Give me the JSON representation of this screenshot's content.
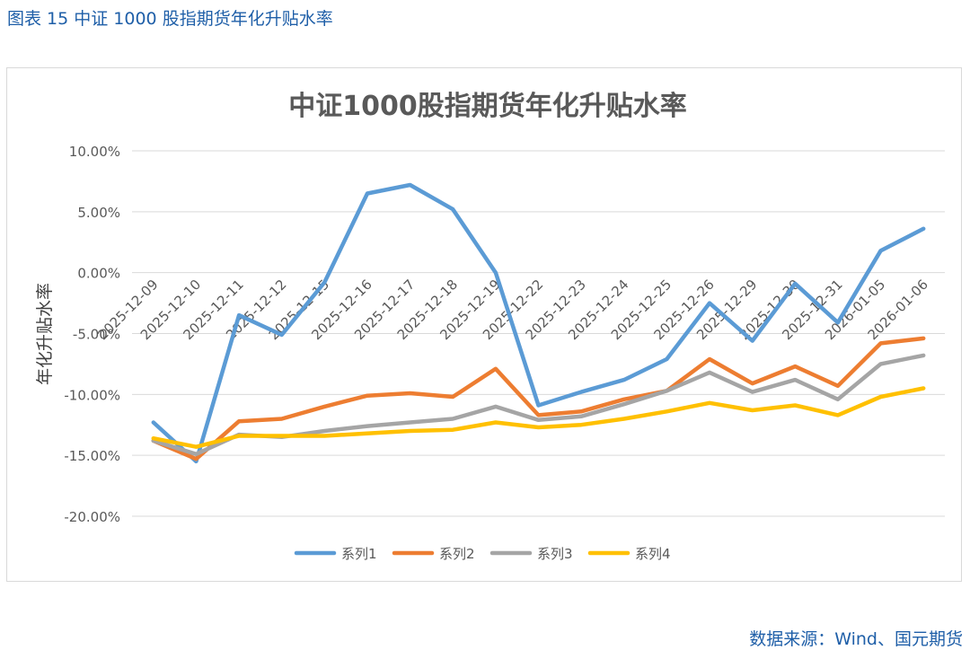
{
  "figure_caption": "图表 15  中证 1000 股指期货年化升贴水率",
  "source_note": "数据来源：Wind、国元期货",
  "colors": {
    "caption": "#1f5fa8",
    "series": [
      "#5b9bd5",
      "#ed7d31",
      "#a5a5a5",
      "#ffc000"
    ],
    "grid": "#d9d9d9",
    "axis_text": "#595959"
  },
  "chart_data": {
    "type": "line",
    "title": "中证1000股指期货年化升贴水率",
    "ylabel": "年化升贴水率",
    "xlabel": "",
    "ylim": [
      -0.2,
      0.1
    ],
    "ytick_values": [
      0.1,
      0.05,
      0.0,
      -0.05,
      -0.1,
      -0.15,
      -0.2
    ],
    "ytick_labels": [
      "10.00%",
      "5.00%",
      "0.00%",
      "-5.00%",
      "-10.00%",
      "-15.00%",
      "-20.00%"
    ],
    "grid": true,
    "legend_position": "bottom",
    "categories": [
      "2025-12-09",
      "2025-12-10",
      "2025-12-11",
      "2025-12-12",
      "2025-12-15",
      "2025-12-16",
      "2025-12-17",
      "2025-12-18",
      "2025-12-19",
      "2025-12-22",
      "2025-12-23",
      "2025-12-24",
      "2025-12-25",
      "2025-12-26",
      "2025-12-29",
      "2025-12-30",
      "2025-12-31",
      "2026-01-05",
      "2026-01-06"
    ],
    "series": [
      {
        "name": "系列1",
        "values": [
          -0.123,
          -0.155,
          -0.035,
          -0.051,
          -0.008,
          0.065,
          0.072,
          0.052,
          0.0,
          -0.109,
          -0.098,
          -0.088,
          -0.071,
          -0.025,
          -0.056,
          -0.009,
          -0.041,
          0.018,
          0.036
        ]
      },
      {
        "name": "系列2",
        "values": [
          -0.138,
          -0.153,
          -0.122,
          -0.12,
          -0.11,
          -0.101,
          -0.099,
          -0.102,
          -0.079,
          -0.117,
          -0.114,
          -0.104,
          -0.097,
          -0.071,
          -0.091,
          -0.077,
          -0.093,
          -0.058,
          -0.054
        ]
      },
      {
        "name": "系列3",
        "values": [
          -0.138,
          -0.149,
          -0.133,
          -0.135,
          -0.13,
          -0.126,
          -0.123,
          -0.12,
          -0.11,
          -0.121,
          -0.118,
          -0.108,
          -0.097,
          -0.082,
          -0.098,
          -0.088,
          -0.104,
          -0.075,
          -0.068
        ]
      },
      {
        "name": "系列4",
        "values": [
          -0.136,
          -0.143,
          -0.134,
          -0.134,
          -0.134,
          -0.132,
          -0.13,
          -0.129,
          -0.123,
          -0.127,
          -0.125,
          -0.12,
          -0.114,
          -0.107,
          -0.113,
          -0.109,
          -0.117,
          -0.102,
          -0.095
        ]
      }
    ]
  }
}
